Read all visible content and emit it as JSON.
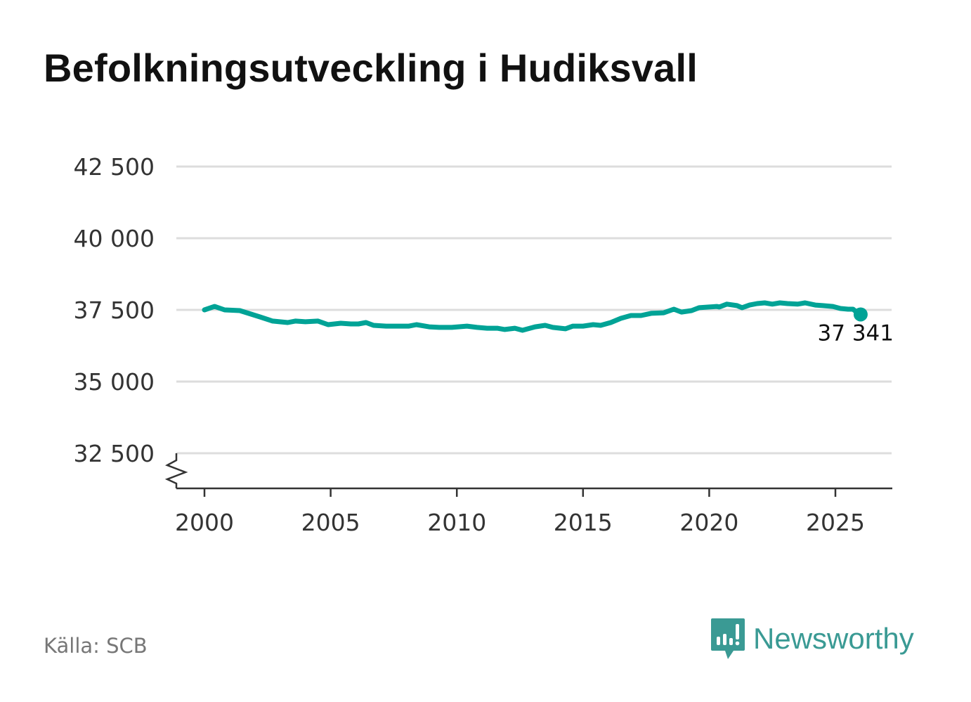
{
  "title": "Befolkningsutveckling i Hudiksvall",
  "source": "Källa: SCB",
  "brand": "Newsworthy",
  "colors": {
    "line": "#00a396",
    "grid": "#dddddd",
    "axis": "#333333",
    "brand": "#3a9a94"
  },
  "chart_data": {
    "type": "line",
    "title": "Befolkningsutveckling i Hudiksvall",
    "xlabel": "",
    "ylabel": "",
    "xlim": [
      1999.0,
      2027.2
    ],
    "ylim": [
      31300,
      42500
    ],
    "y_ticks": [
      32500,
      35000,
      37500,
      40000,
      42500
    ],
    "y_tick_labels": [
      "32 500",
      "35 000",
      "37 500",
      "40 000",
      "42 500"
    ],
    "x_ticks": [
      2000,
      2005,
      2010,
      2015,
      2020,
      2025
    ],
    "x_tick_labels": [
      "2000",
      "2005",
      "2010",
      "2015",
      "2020",
      "2025"
    ],
    "grid": true,
    "axis_break": true,
    "end_label": "37 341",
    "series": [
      {
        "name": "Hudiksvall",
        "x": [
          2000.0,
          2000.4,
          2000.8,
          2001.4,
          2002.2,
          2002.7,
          2003.3,
          2003.6,
          2004.0,
          2004.5,
          2004.9,
          2005.4,
          2005.8,
          2006.1,
          2006.4,
          2006.7,
          2007.2,
          2008.1,
          2008.4,
          2008.9,
          2009.3,
          2009.8,
          2010.4,
          2010.8,
          2011.2,
          2011.6,
          2011.9,
          2012.3,
          2012.6,
          2013.1,
          2013.5,
          2013.8,
          2014.3,
          2014.6,
          2015.0,
          2015.4,
          2015.7,
          2016.1,
          2016.5,
          2016.9,
          2017.3,
          2017.7,
          2018.2,
          2018.6,
          2018.9,
          2019.3,
          2019.6,
          2020.0,
          2020.3,
          2020.4,
          2020.7,
          2021.1,
          2021.3,
          2021.6,
          2021.9,
          2022.2,
          2022.5,
          2022.8,
          2023.1,
          2023.5,
          2023.8,
          2024.2,
          2024.5,
          2024.9,
          2025.2,
          2025.5,
          2025.7,
          2025.9,
          2026.0
        ],
        "values": [
          37500,
          37620,
          37500,
          37475,
          37255,
          37110,
          37060,
          37110,
          37085,
          37110,
          36985,
          37035,
          37010,
          37010,
          37060,
          36960,
          36935,
          36935,
          36985,
          36910,
          36890,
          36890,
          36935,
          36890,
          36860,
          36860,
          36815,
          36860,
          36790,
          36910,
          36960,
          36890,
          36840,
          36935,
          36935,
          36985,
          36960,
          37060,
          37205,
          37305,
          37305,
          37380,
          37400,
          37525,
          37425,
          37475,
          37575,
          37600,
          37620,
          37600,
          37700,
          37650,
          37575,
          37670,
          37720,
          37745,
          37700,
          37745,
          37720,
          37700,
          37745,
          37670,
          37650,
          37620,
          37550,
          37525,
          37525,
          37380,
          37341
        ]
      }
    ]
  }
}
